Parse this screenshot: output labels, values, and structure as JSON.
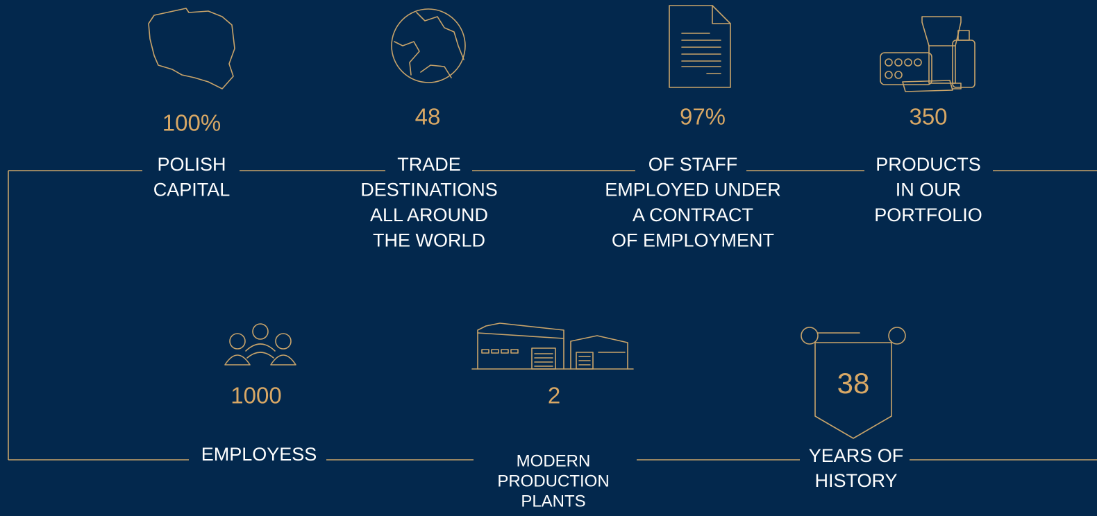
{
  "top": [
    {
      "value": "100%",
      "label": [
        "POLISH",
        "CAPITAL"
      ]
    },
    {
      "value": "48",
      "label": [
        "TRADE",
        "DESTINATIONS",
        "ALL AROUND",
        "THE WORLD"
      ]
    },
    {
      "value": "97%",
      "label": [
        "OF STAFF",
        "EMPLOYED UNDER",
        "A CONTRACT",
        "OF EMPLOYMENT"
      ]
    },
    {
      "value": "350",
      "label": [
        "PRODUCTS",
        "IN OUR",
        "PORTFOLIO"
      ]
    }
  ],
  "bottom": [
    {
      "value": "1000",
      "label": [
        "EMPLOYESS"
      ]
    },
    {
      "value": "2",
      "label": [
        "MODERN",
        "PRODUCTION",
        "PLANTS"
      ]
    },
    {
      "value": "38",
      "label": [
        "YEARS OF",
        "HISTORY"
      ]
    }
  ]
}
